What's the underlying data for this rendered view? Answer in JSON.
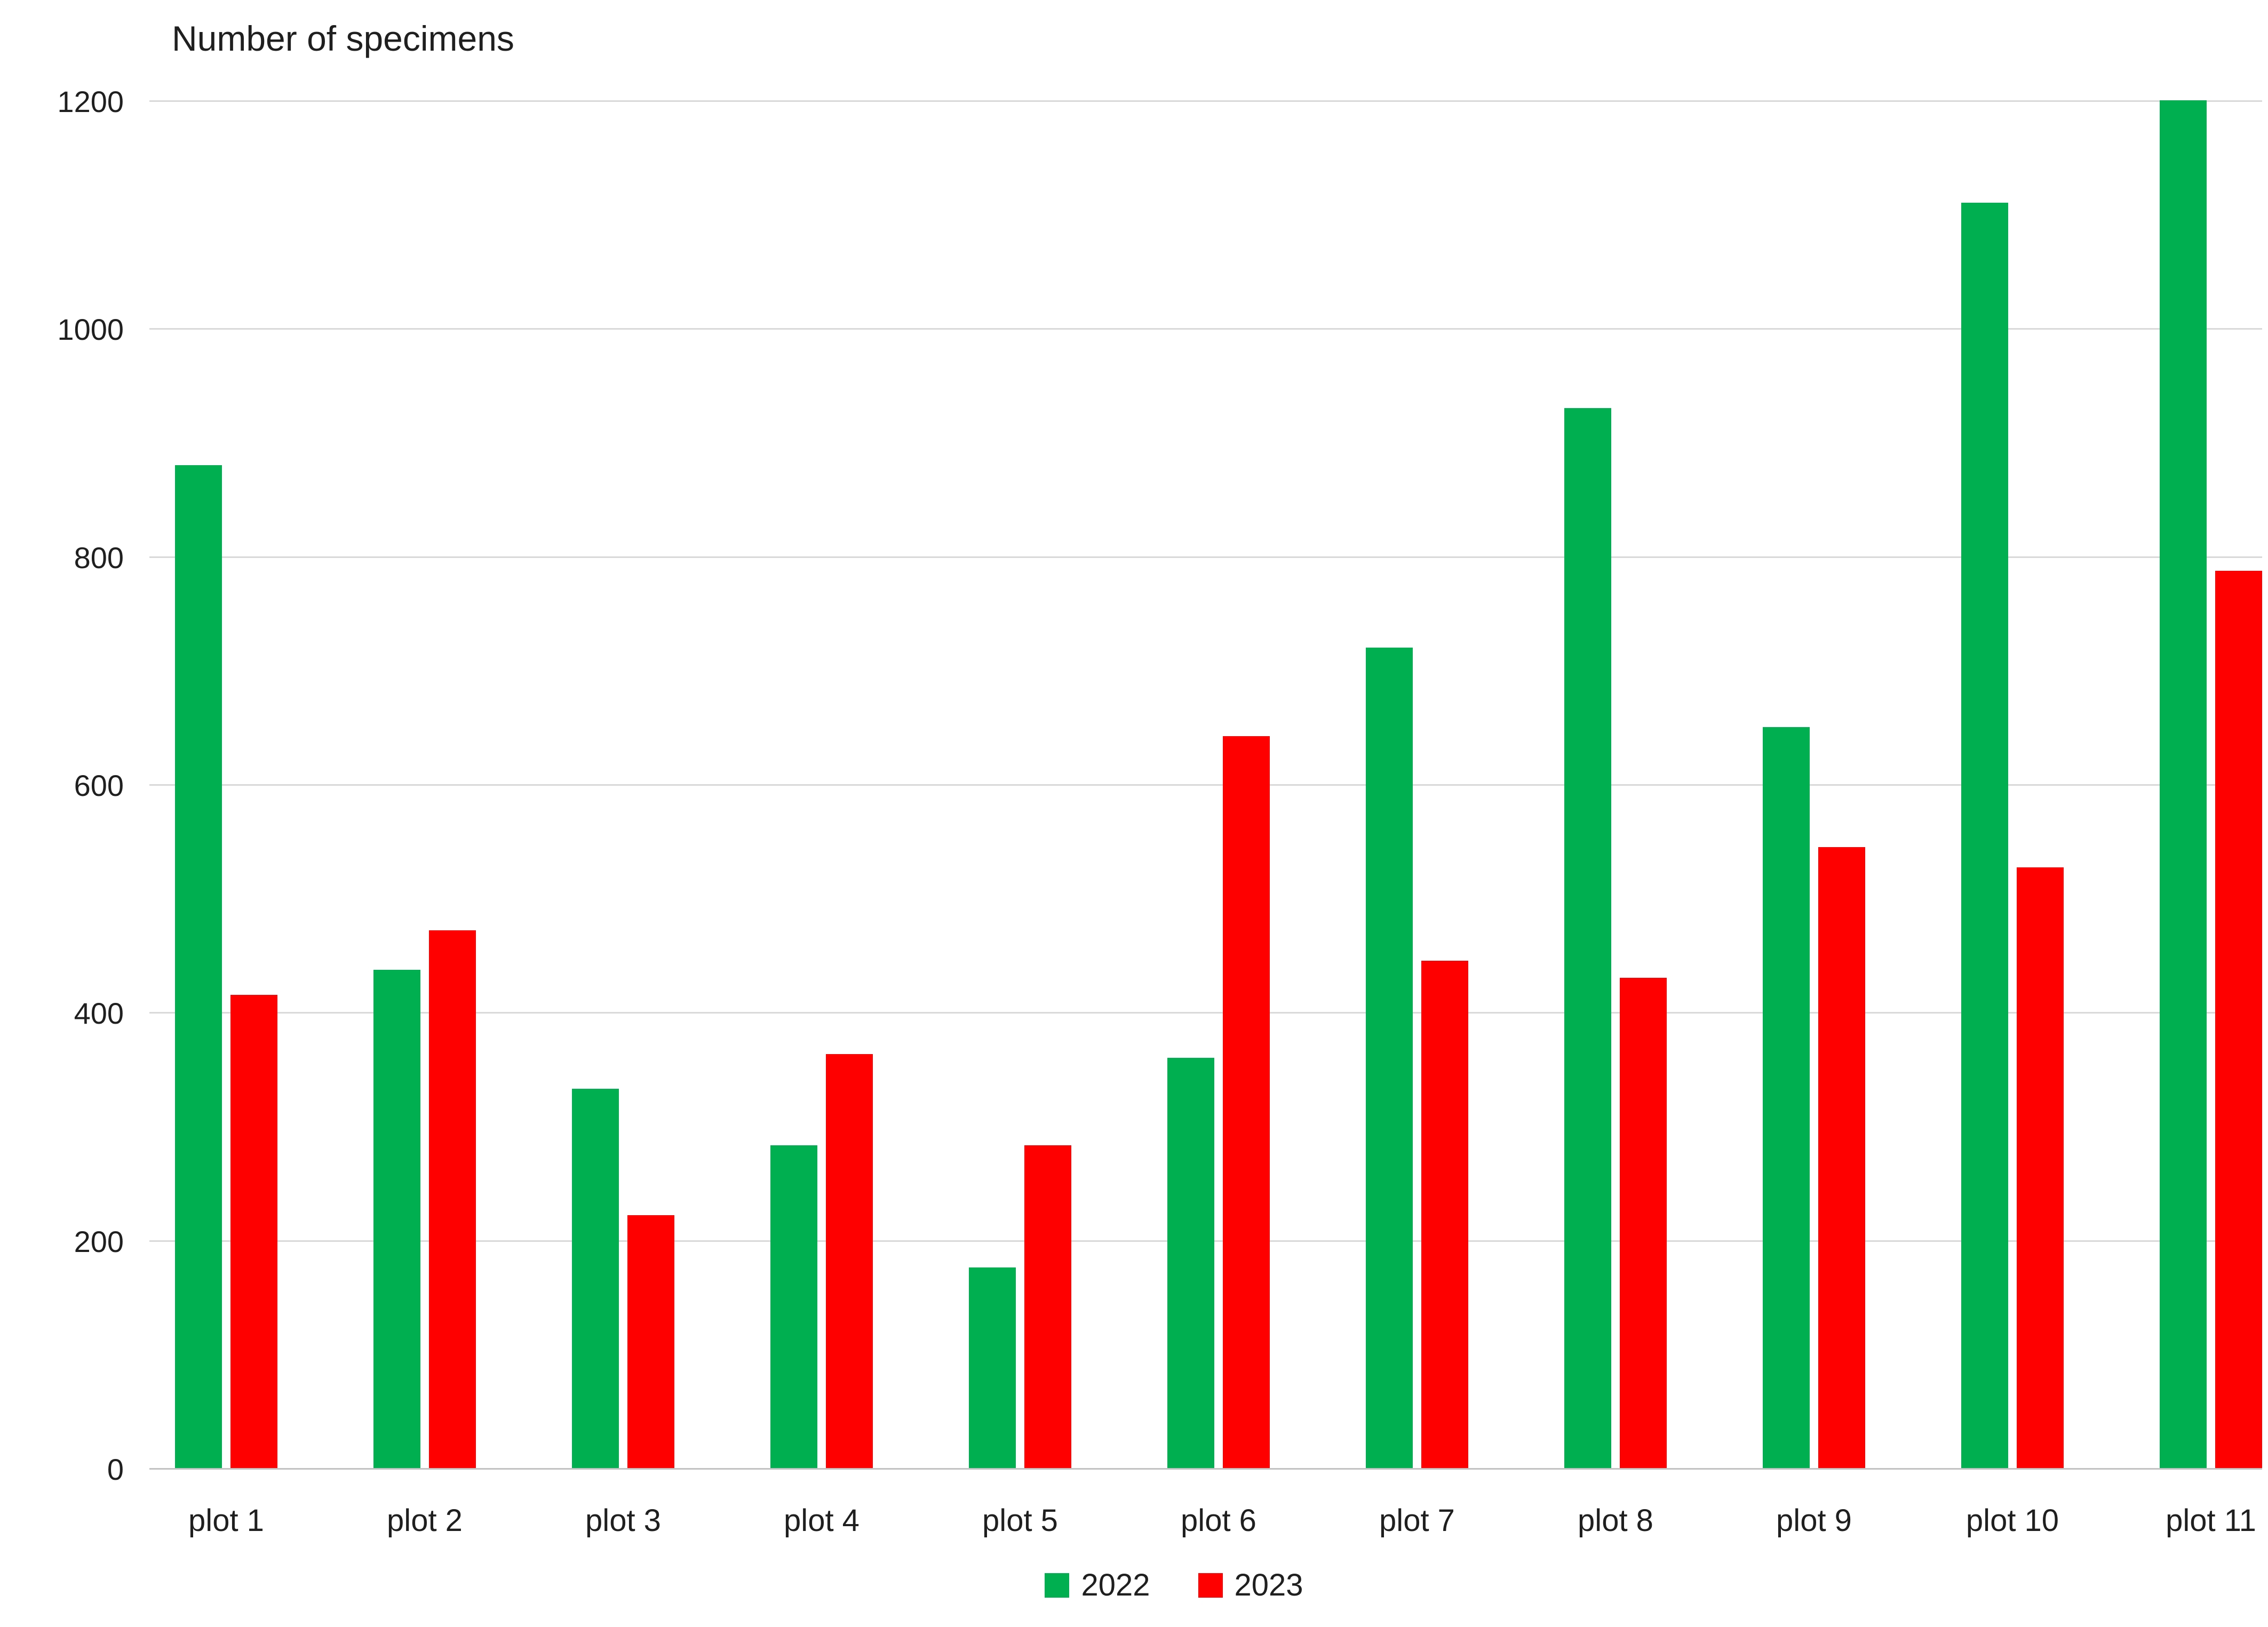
{
  "title": "Number of specimens",
  "colors": {
    "series_2022": "#00B050",
    "series_2023": "#FF0000",
    "gridline": "#D9D9D9",
    "axis_line": "#C2C2C2",
    "text": "#1F1F1F",
    "background": "#FFFFFF"
  },
  "legend": {
    "position": "bottom",
    "items": [
      {
        "label": "2022",
        "color": "#00B050"
      },
      {
        "label": "2023",
        "color": "#FF0000"
      }
    ]
  },
  "axis": {
    "y_ticks": [
      0,
      200,
      400,
      600,
      800,
      1000,
      1200
    ],
    "x_labels": [
      "plot 1",
      "plot 2",
      "plot 3",
      "plot 4",
      "plot 5",
      "plot 6",
      "plot 7",
      "plot 8",
      "plot 9",
      "plot 10",
      "plot 11"
    ]
  },
  "chart_data": {
    "type": "bar",
    "title": "Number of specimens",
    "categories": [
      "plot 1",
      "plot 2",
      "plot 3",
      "plot 4",
      "plot 5",
      "plot 6",
      "plot 7",
      "plot 8",
      "plot 9",
      "plot 10",
      "plot 11"
    ],
    "series": [
      {
        "name": "2022",
        "color": "#00B050",
        "values": [
          880,
          437,
          333,
          283,
          176,
          360,
          720,
          930,
          650,
          1110,
          1200
        ]
      },
      {
        "name": "2023",
        "color": "#FF0000",
        "values": [
          415,
          472,
          222,
          363,
          283,
          642,
          445,
          430,
          545,
          527,
          787
        ]
      }
    ],
    "xlabel": "",
    "ylabel": "",
    "ylim": [
      0,
      1200
    ],
    "y_tick_step": 200,
    "grid": true,
    "legend_position": "bottom"
  }
}
